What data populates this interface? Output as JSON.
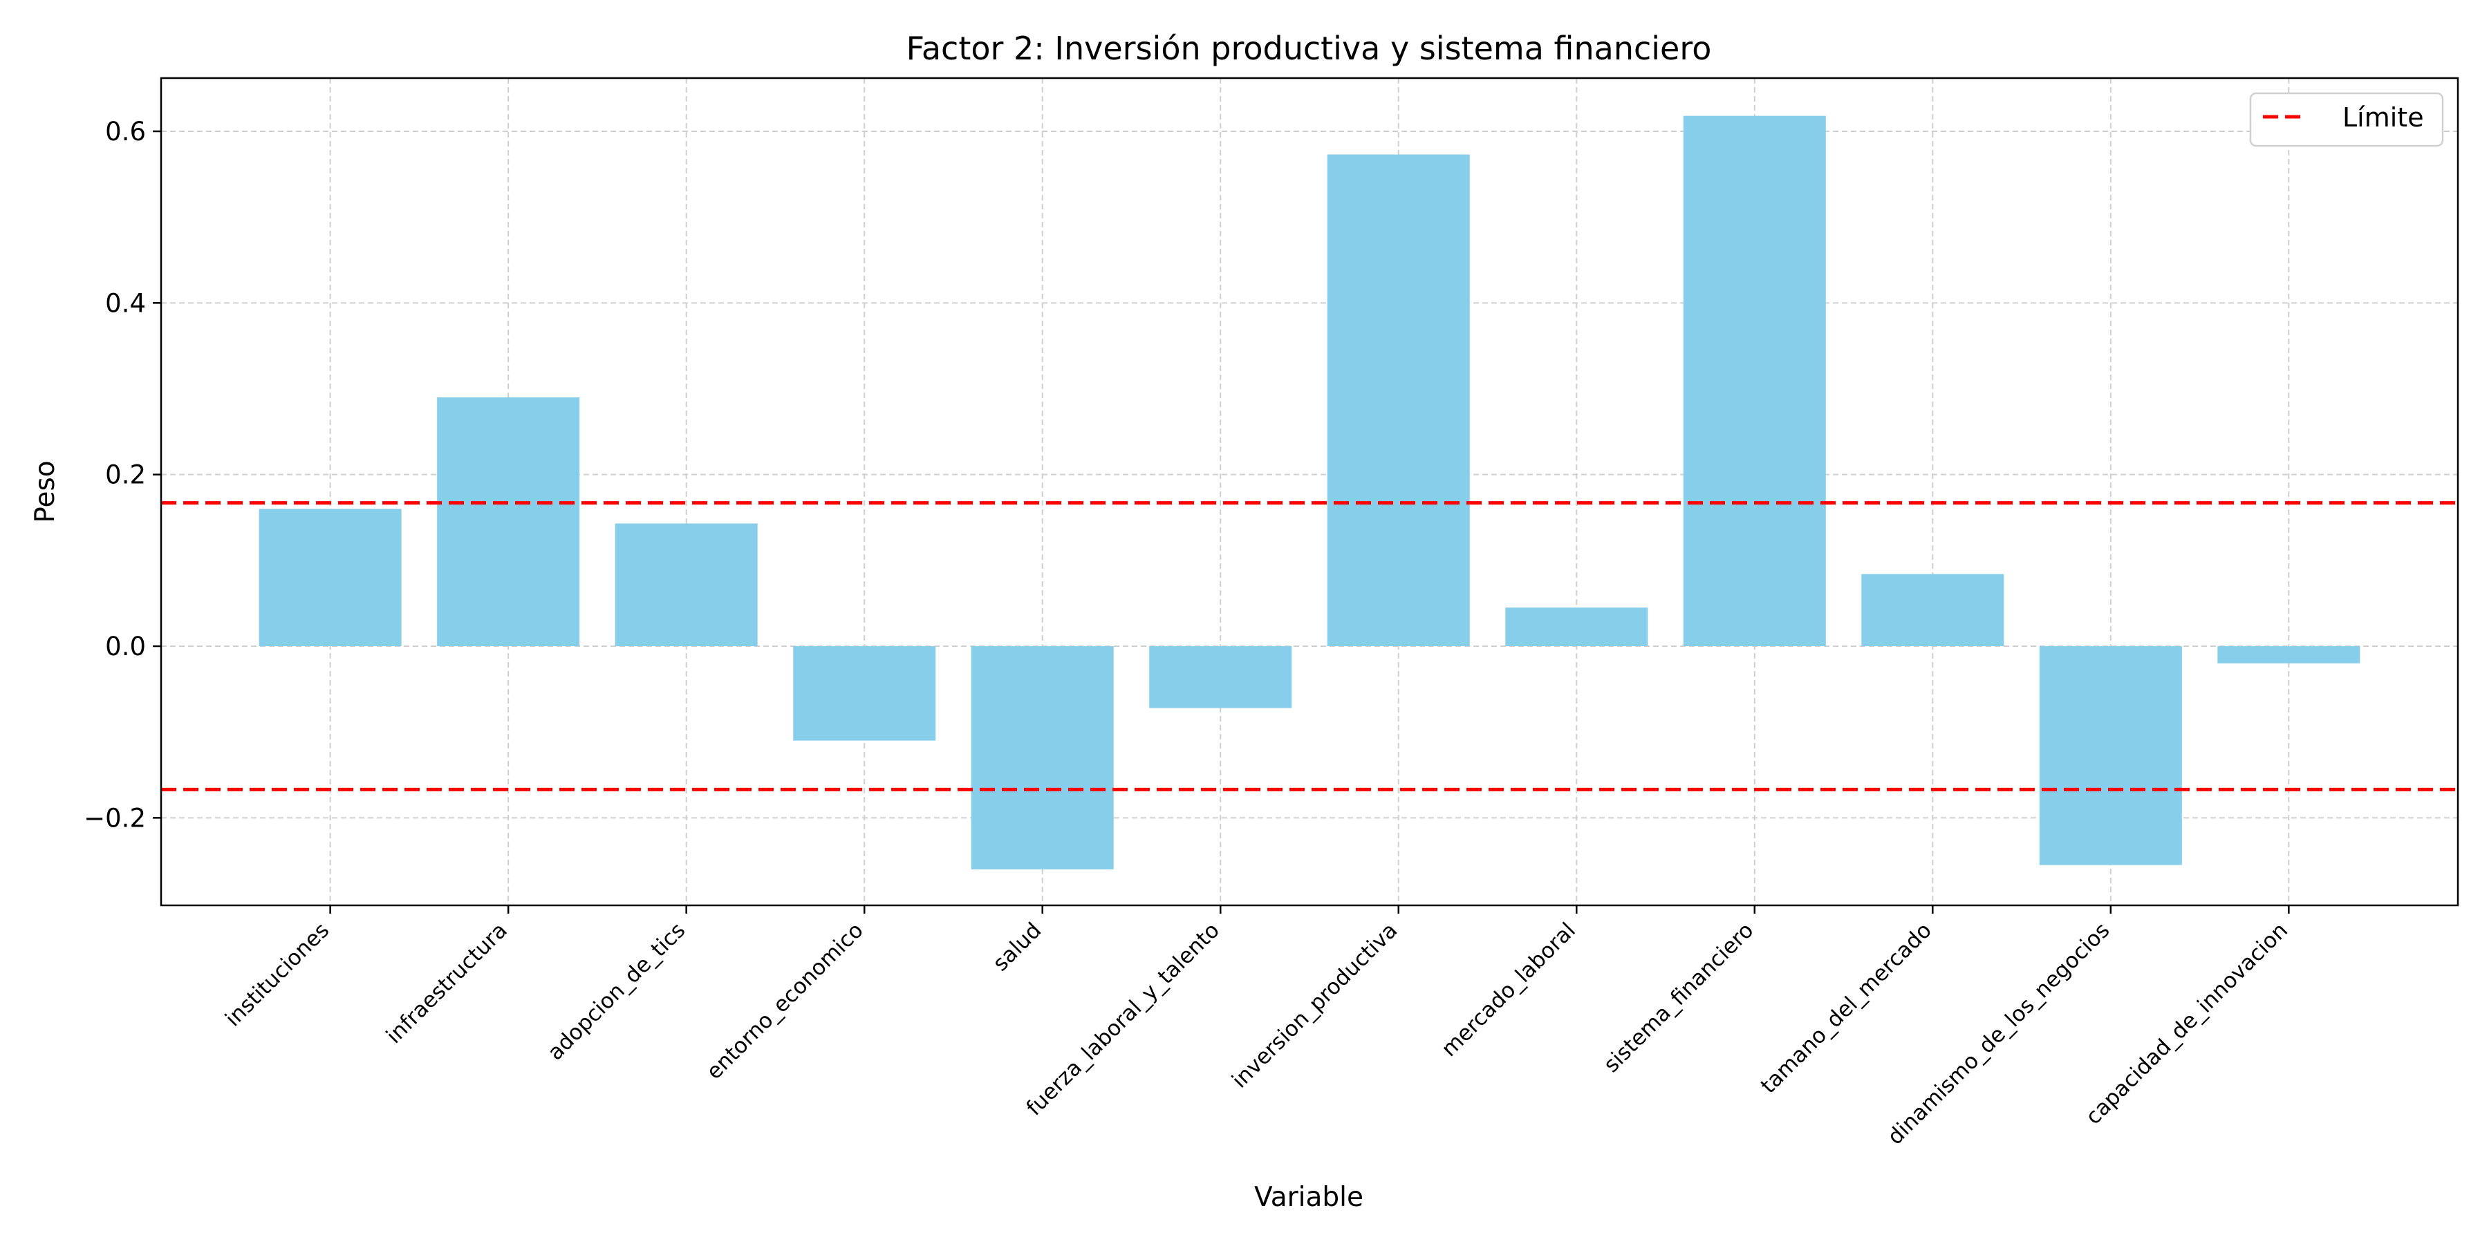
{
  "chart_data": {
    "type": "bar",
    "title": "Factor 2: Inversión productiva y sistema financiero",
    "xlabel": "Variable",
    "ylabel": "Peso",
    "categories": [
      "instituciones",
      "infraestructura",
      "adopcion_de_tics",
      "entorno_economico",
      "salud",
      "fuerza_laboral_y_talento",
      "inversion_productiva",
      "mercado_laboral",
      "sistema_financiero",
      "tamano_del_mercado",
      "dinamismo_de_los_negocios",
      "capacidad_de_innovacion"
    ],
    "values": [
      0.16,
      0.29,
      0.143,
      -0.11,
      -0.26,
      -0.072,
      0.573,
      0.045,
      0.618,
      0.084,
      -0.255,
      -0.02
    ],
    "ylim": [
      -0.302,
      0.662
    ],
    "yticks": [
      -0.2,
      0.0,
      0.2,
      0.4,
      0.6
    ],
    "ytick_labels": [
      "−0.2",
      "0.0",
      "0.2",
      "0.4",
      "0.6"
    ],
    "grid": true,
    "bar_color": "#87ceeb",
    "threshold_lines": [
      {
        "value": 0.167,
        "color": "#ff0000",
        "style": "dashed"
      },
      {
        "value": -0.167,
        "color": "#ff0000",
        "style": "dashed"
      }
    ],
    "legend": {
      "placement": "top-right",
      "entries": [
        {
          "label": "Límite",
          "color": "#ff0000",
          "style": "dashed"
        }
      ]
    }
  }
}
